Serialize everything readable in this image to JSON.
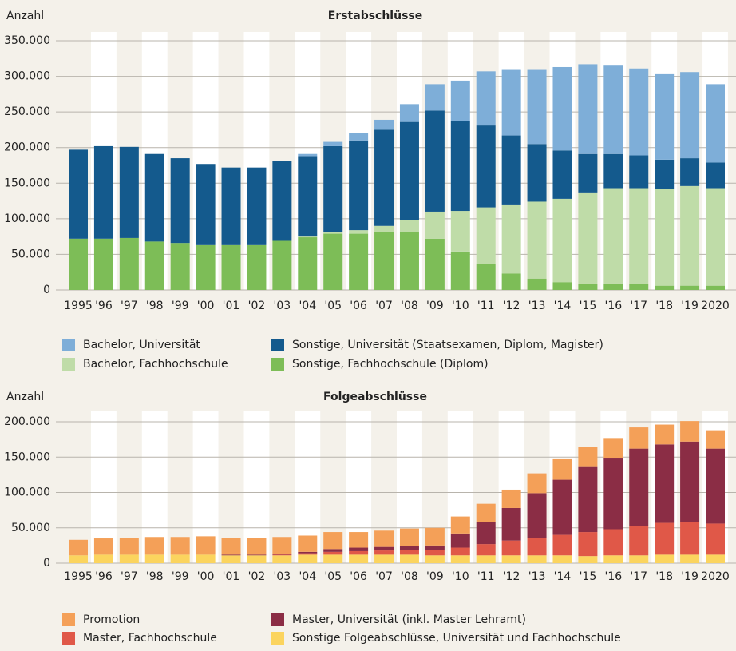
{
  "chart_data": [
    {
      "type": "stacked-bar",
      "title": "Erstabschlüsse",
      "y_label": "Anzahl",
      "categories": [
        "1995",
        "'96",
        "'97",
        "'98",
        "'99",
        "'00",
        "'01",
        "'02",
        "'03",
        "'04",
        "'05",
        "'06",
        "'07",
        "'08",
        "'09",
        "'10",
        "'11",
        "'12",
        "'13",
        "'14",
        "'15",
        "'16",
        "'17",
        "'18",
        "'19",
        "2020"
      ],
      "ylim": [
        0,
        350000
      ],
      "yticks": [
        0,
        {
          "value": 50000,
          "label": "50.000"
        },
        {
          "value": 100000,
          "label": "100.000"
        },
        {
          "value": 150000,
          "label": "150.000"
        },
        {
          "value": 200000,
          "label": "200.000"
        },
        {
          "value": 250000,
          "label": "250.000"
        },
        {
          "value": 300000,
          "label": "300.000"
        },
        {
          "value": 350000,
          "label": "350.000"
        }
      ],
      "grid": true,
      "series": [
        {
          "name": "Sonstige, Fachhochschule (Diplom)",
          "color": "#7dbd57",
          "values": [
            72000,
            72000,
            73000,
            68000,
            66000,
            63000,
            63000,
            63000,
            69000,
            74000,
            79000,
            79000,
            81000,
            81000,
            72000,
            54000,
            36000,
            23000,
            16000,
            11000,
            9000,
            9000,
            8000,
            6000,
            6000,
            6000
          ]
        },
        {
          "name": "Bachelor, Fachhochschule",
          "color": "#bfdca8",
          "values": [
            0,
            0,
            0,
            0,
            0,
            0,
            0,
            0,
            0,
            1000,
            2000,
            5000,
            9000,
            17000,
            38000,
            57000,
            80000,
            96000,
            108000,
            117000,
            128000,
            134000,
            135000,
            136000,
            140000,
            137000
          ]
        },
        {
          "name": "Sonstige, Universität (Staatsexamen, Diplom, Magister)",
          "color": "#145a8d",
          "values": [
            125000,
            130000,
            128000,
            123000,
            119000,
            114000,
            109000,
            109000,
            112000,
            113000,
            121000,
            126000,
            135000,
            138000,
            142000,
            126000,
            115000,
            98000,
            81000,
            68000,
            54000,
            48000,
            46000,
            41000,
            39000,
            36000
          ]
        },
        {
          "name": "Bachelor, Universität",
          "color": "#7eaed8",
          "values": [
            0,
            0,
            0,
            0,
            0,
            0,
            0,
            0,
            0,
            3000,
            6000,
            10000,
            14000,
            25000,
            37000,
            57000,
            76000,
            92000,
            104000,
            117000,
            126000,
            124000,
            122000,
            120000,
            121000,
            110000
          ]
        }
      ]
    },
    {
      "type": "stacked-bar",
      "title": "Folgeabschlüsse",
      "y_label": "Anzahl",
      "categories": [
        "1995",
        "'96",
        "'97",
        "'98",
        "'99",
        "'00",
        "'01",
        "'02",
        "'03",
        "'04",
        "'05",
        "'06",
        "'07",
        "'08",
        "'09",
        "'10",
        "'11",
        "'12",
        "'13",
        "'14",
        "'15",
        "'16",
        "'17",
        "'18",
        "'19",
        "2020"
      ],
      "ylim": [
        0,
        200000
      ],
      "yticks": [
        0,
        {
          "value": 50000,
          "label": "50.000"
        },
        {
          "value": 100000,
          "label": "100.000"
        },
        {
          "value": 150000,
          "label": "150.000"
        },
        {
          "value": 200000,
          "label": "200.000"
        }
      ],
      "grid": true,
      "series": [
        {
          "name": "Sonstige Folgeabschlüsse, Universität und Fachhochschule",
          "color": "#fbd45e",
          "values": [
            11000,
            12000,
            12000,
            12000,
            12000,
            12000,
            11000,
            11000,
            11000,
            12000,
            12000,
            12000,
            12000,
            12000,
            11000,
            11000,
            11000,
            11000,
            11000,
            11000,
            10000,
            11000,
            11000,
            12000,
            12000,
            12000
          ]
        },
        {
          "name": "Master, Fachhochschule",
          "color": "#e05848",
          "values": [
            0,
            0,
            0,
            0,
            0,
            0,
            0,
            0,
            1000,
            2000,
            4000,
            5000,
            6000,
            7000,
            8000,
            11000,
            16000,
            21000,
            25000,
            29000,
            34000,
            37000,
            42000,
            45000,
            46000,
            44000
          ]
        },
        {
          "name": "Master, Universität (inkl. Master Lehramt)",
          "color": "#8b2d45",
          "values": [
            0,
            0,
            0,
            0,
            0,
            0,
            1000,
            1000,
            1000,
            2000,
            4000,
            5000,
            5000,
            5000,
            6000,
            20000,
            31000,
            46000,
            63000,
            78000,
            92000,
            100000,
            109000,
            111000,
            114000,
            106000
          ]
        },
        {
          "name": "Promotion",
          "color": "#f4a058",
          "values": [
            22000,
            23000,
            24000,
            25000,
            25000,
            26000,
            24000,
            24000,
            24000,
            23000,
            24000,
            22000,
            23000,
            25000,
            25000,
            24000,
            26000,
            26000,
            28000,
            29000,
            28000,
            29000,
            30000,
            28000,
            29000,
            26000
          ]
        }
      ]
    }
  ]
}
